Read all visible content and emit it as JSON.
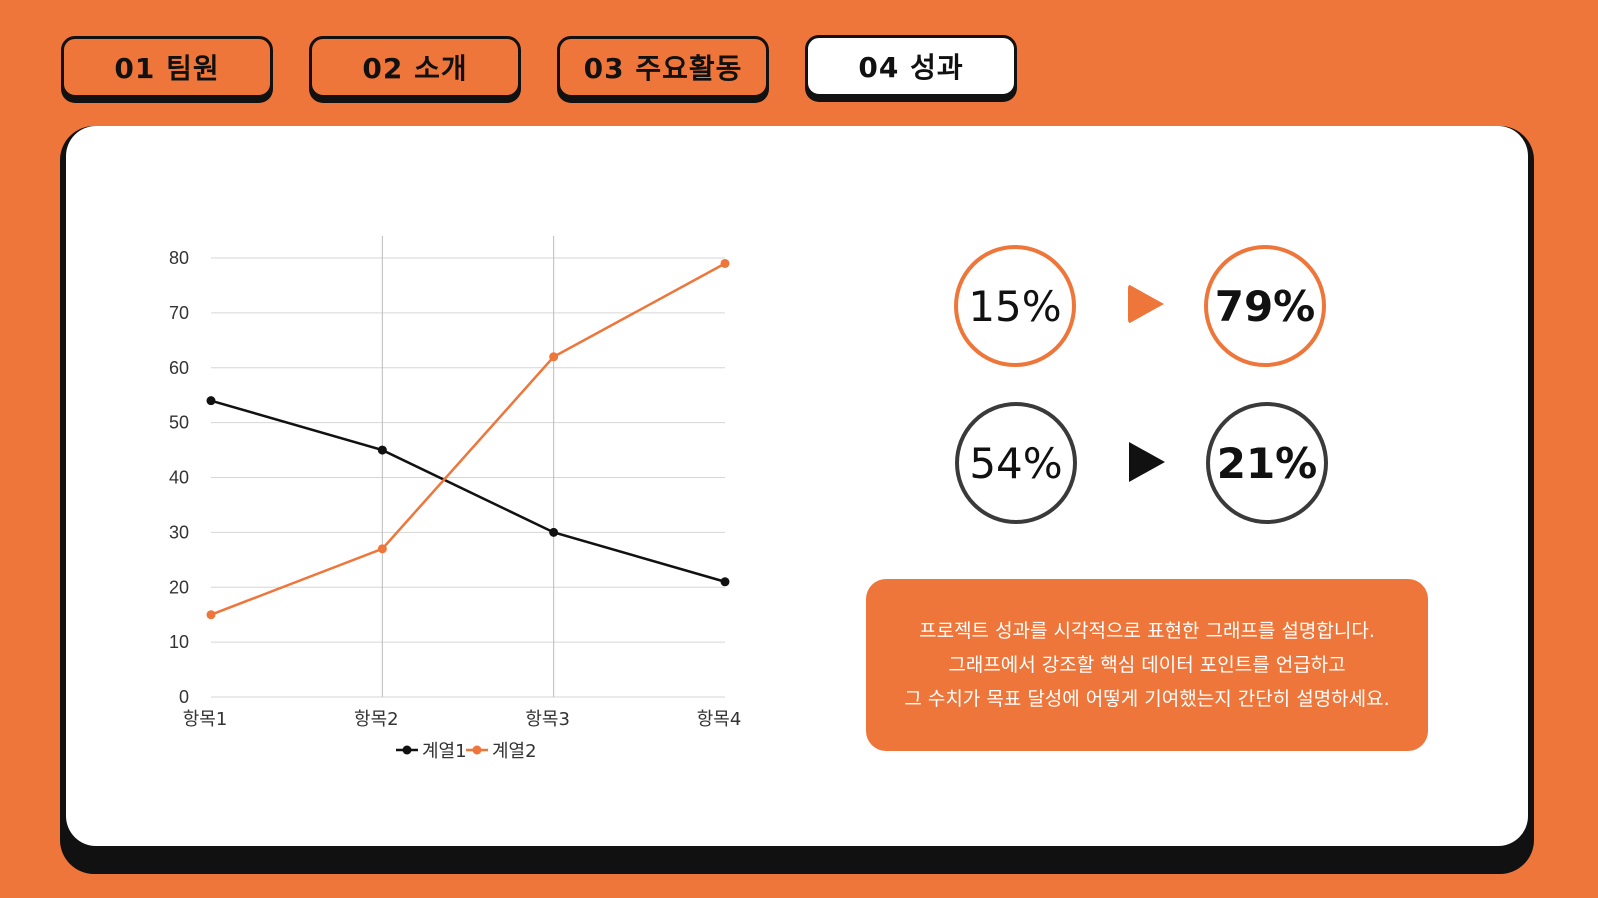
{
  "tabs": [
    {
      "label": "01 팀원",
      "active": false
    },
    {
      "label": "02 소개",
      "active": false
    },
    {
      "label": "03 주요활동",
      "active": false
    },
    {
      "label": "04 성과",
      "active": true
    }
  ],
  "stats": {
    "row1": {
      "before": "15%",
      "after": "79%",
      "color": "#EE763A"
    },
    "row2": {
      "before": "54%",
      "after": "21%",
      "color": "#111111"
    }
  },
  "description": {
    "lines": [
      "프로젝트 성과를 시각적으로 표현한 그래프를 설명합니다.",
      "그래프에서 강조할 핵심 데이터 포인트를 언급하고",
      "그 수치가 목표 달성에 어떻게 기여했는지 간단히 설명하세요."
    ]
  },
  "chart_data": {
    "type": "line",
    "categories": [
      "항목1",
      "항목2",
      "항목3",
      "항목4"
    ],
    "series": [
      {
        "name": "계열1",
        "values": [
          54,
          45,
          30,
          21
        ],
        "color": "#111111"
      },
      {
        "name": "계열2",
        "values": [
          15,
          27,
          62,
          79
        ],
        "color": "#EE763A"
      }
    ],
    "ylim": [
      0,
      80
    ],
    "yticks": [
      0,
      10,
      20,
      30,
      40,
      50,
      60,
      70,
      80
    ],
    "grid": true,
    "legend": "bottom"
  }
}
